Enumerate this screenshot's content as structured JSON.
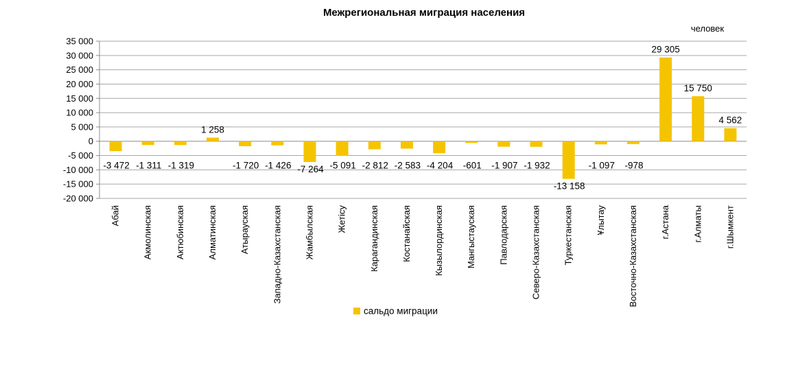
{
  "chart_data": {
    "type": "bar",
    "title": "Межрегиональная  миграция  населения",
    "unit_label": "человек",
    "xlabel": "",
    "ylabel": "",
    "ylim": [
      -20000,
      35000
    ],
    "y_ticks": [
      "35 000",
      "30 000",
      "25 000",
      "20 000",
      "15 000",
      "10 000",
      "5 000",
      "0",
      "-5 000",
      "-10 000",
      "-15 000",
      "-20 000"
    ],
    "y_tick_values": [
      35000,
      30000,
      25000,
      20000,
      15000,
      10000,
      5000,
      0,
      -5000,
      -10000,
      -15000,
      -20000
    ],
    "grid": true,
    "legend_position": "bottom-center",
    "bar_color": "#F5C400",
    "categories": [
      "Абай",
      "Акмолинская",
      "Актюбинская",
      "Алматинская",
      "Атырауская",
      "Западно-Казахстанская",
      "Жамбылская",
      "Жетісу",
      "Карагандинская",
      "Костанайская",
      "Кызылординская",
      "Мангыстауская",
      "Павлодарская",
      "Северо-Казахстанская",
      "Туркестанская",
      "Ұлытау",
      "Восточно-Казахстанская",
      "г.Астана",
      "г.Алматы",
      "г.Шымкент"
    ],
    "series": [
      {
        "name": "сальдо миграции",
        "values": [
          -3472,
          -1311,
          -1319,
          1258,
          -1720,
          -1426,
          -7264,
          -5091,
          -2812,
          -2583,
          -4204,
          -601,
          -1907,
          -1932,
          -13158,
          -1097,
          -978,
          29305,
          15750,
          4562
        ],
        "data_labels": [
          "-3 472",
          "-1 311",
          "-1 319",
          "1 258",
          "-1 720",
          "-1 426",
          "-7 264",
          "-5 091",
          "-2 812",
          "-2 583",
          "-4 204",
          "-601",
          "-1 907",
          "-1 932",
          "-13 158",
          "-1 097",
          "-978",
          "29 305",
          "15 750",
          "4 562"
        ]
      }
    ]
  }
}
